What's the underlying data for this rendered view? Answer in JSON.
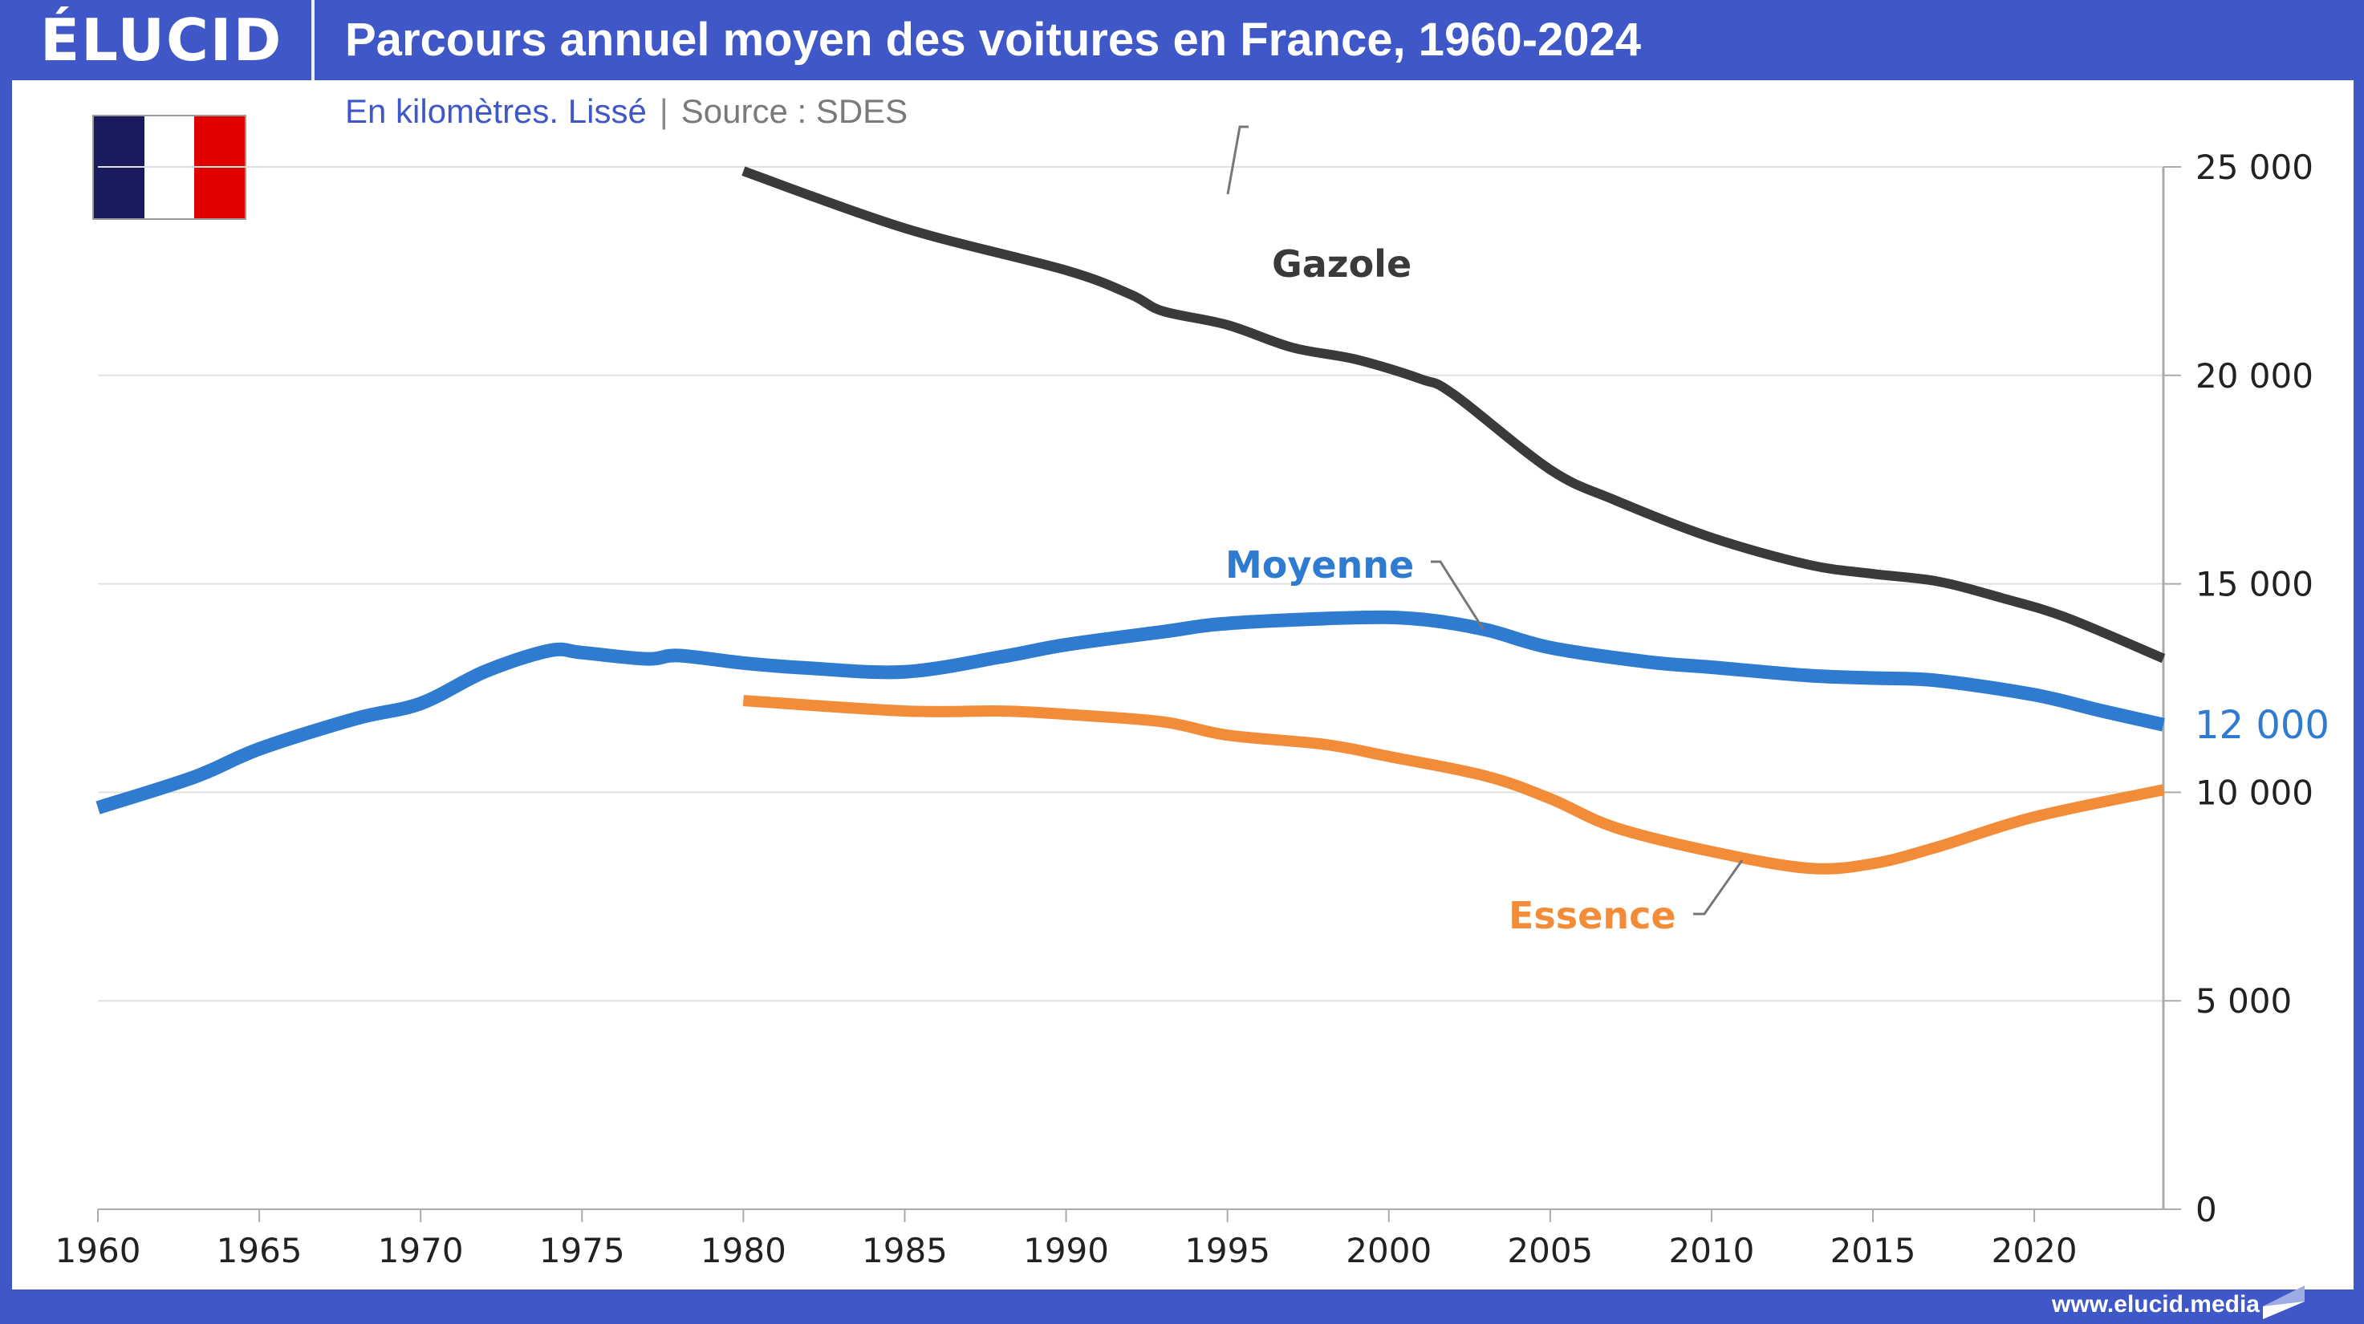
{
  "header": {
    "logo": "ÉLUCID",
    "title": "Parcours annuel moyen des voitures en France, 1960-2024"
  },
  "subtitle": {
    "unit": "En kilomètres. Lissé",
    "separator": "|",
    "source": "Source : SDES"
  },
  "flag": {
    "country": "France",
    "colors": [
      "#1a1a5e",
      "#ffffff",
      "#e00000"
    ]
  },
  "footer": {
    "url": "www.elucid.media"
  },
  "colors": {
    "frame": "#3f57c7",
    "gazole": "#3a3a3a",
    "moyenne": "#2f7bd0",
    "essence": "#f28c38",
    "grid": "#e0e0e0",
    "axis": "#aaaaaa"
  },
  "chart_data": {
    "type": "line",
    "title": "Parcours annuel moyen des voitures en France, 1960-2024",
    "subtitle": "En kilomètres. Lissé",
    "source": "Source : SDES",
    "xlabel": "",
    "ylabel": "",
    "xlim": [
      1960,
      2024
    ],
    "ylim": [
      0,
      25000
    ],
    "x_ticks": [
      "1960",
      "1965",
      "1970",
      "1975",
      "1980",
      "1985",
      "1990",
      "1995",
      "2000",
      "2005",
      "2010",
      "2015",
      "2020"
    ],
    "y_ticks": [
      "0",
      "5 000",
      "10 000",
      "15 000",
      "20 000",
      "25 000"
    ],
    "y_tick_values": [
      0,
      5000,
      10000,
      15000,
      20000,
      25000
    ],
    "y_axis_side": "right",
    "grid": true,
    "end_label": {
      "series": "Moyenne",
      "text": "12 000"
    },
    "series": [
      {
        "name": "Gazole",
        "label": "Gazole",
        "x": [
          1980,
          1985,
          1990,
          1992,
          1993,
          1995,
          1997,
          1999,
          2001,
          2002,
          2005,
          2007,
          2010,
          2013,
          2015,
          2017,
          2019,
          2021,
          2024
        ],
        "values": [
          24900,
          23530,
          22520,
          21940,
          21540,
          21210,
          20670,
          20380,
          19910,
          19550,
          17740,
          17010,
          16110,
          15460,
          15240,
          15060,
          14660,
          14190,
          13210
        ]
      },
      {
        "name": "Moyenne",
        "label": "Moyenne",
        "x": [
          1960,
          1963,
          1965,
          1968,
          1970,
          1972,
          1974,
          1975,
          1977,
          1978,
          1980,
          1982,
          1985,
          1988,
          1990,
          1993,
          1995,
          1999,
          2001,
          2003,
          2005,
          2008,
          2010,
          2013,
          2015,
          2017,
          2020,
          2022,
          2024
        ],
        "values": [
          9630,
          10370,
          11040,
          11770,
          12130,
          12900,
          13400,
          13350,
          13200,
          13280,
          13100,
          12980,
          12890,
          13250,
          13540,
          13850,
          14050,
          14190,
          14150,
          13900,
          13470,
          13130,
          13000,
          12800,
          12740,
          12680,
          12340,
          11970,
          11620
        ]
      },
      {
        "name": "Essence",
        "label": "Essence",
        "x": [
          1980,
          1985,
          1988,
          1990,
          1993,
          1995,
          1998,
          2000,
          2003,
          2005,
          2007,
          2010,
          2013,
          2015,
          2017,
          2020,
          2024
        ],
        "values": [
          12200,
          11950,
          11950,
          11870,
          11690,
          11370,
          11150,
          10860,
          10390,
          9850,
          9160,
          8580,
          8180,
          8290,
          8690,
          9410,
          10060
        ]
      }
    ]
  }
}
